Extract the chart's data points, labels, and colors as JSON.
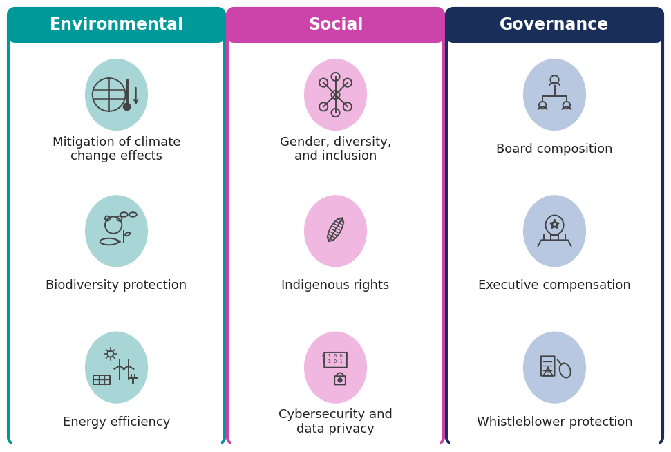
{
  "columns": [
    {
      "title": "Environmental",
      "header_color": "#009999",
      "border_color": "#009999",
      "icon_bg_color": "#a8d5d5",
      "items": [
        {
          "label": "Mitigation of climate\nchange effects",
          "icon": "climate"
        },
        {
          "label": "Biodiversity protection",
          "icon": "biodiversity"
        },
        {
          "label": "Energy efficiency",
          "icon": "energy"
        }
      ]
    },
    {
      "title": "Social",
      "header_color": "#cc44aa",
      "border_color": "#cc44aa",
      "icon_bg_color": "#f0b8e0",
      "items": [
        {
          "label": "Gender, diversity,\nand inclusion",
          "icon": "diversity"
        },
        {
          "label": "Indigenous rights",
          "icon": "indigenous"
        },
        {
          "label": "Cybersecurity and\ndata privacy",
          "icon": "cybersecurity"
        }
      ]
    },
    {
      "title": "Governance",
      "header_color": "#1a2e5a",
      "border_color": "#1a2e5a",
      "icon_bg_color": "#b8c8e0",
      "items": [
        {
          "label": "Board composition",
          "icon": "board"
        },
        {
          "label": "Executive compensation",
          "icon": "compensation"
        },
        {
          "label": "Whistleblower protection",
          "icon": "whistleblower"
        }
      ]
    }
  ],
  "bg_color": "#ffffff",
  "cell_bg": "#ffffff",
  "title_text_color": "#ffffff",
  "label_text_color": "#222222",
  "title_fontsize": 17,
  "label_fontsize": 13
}
